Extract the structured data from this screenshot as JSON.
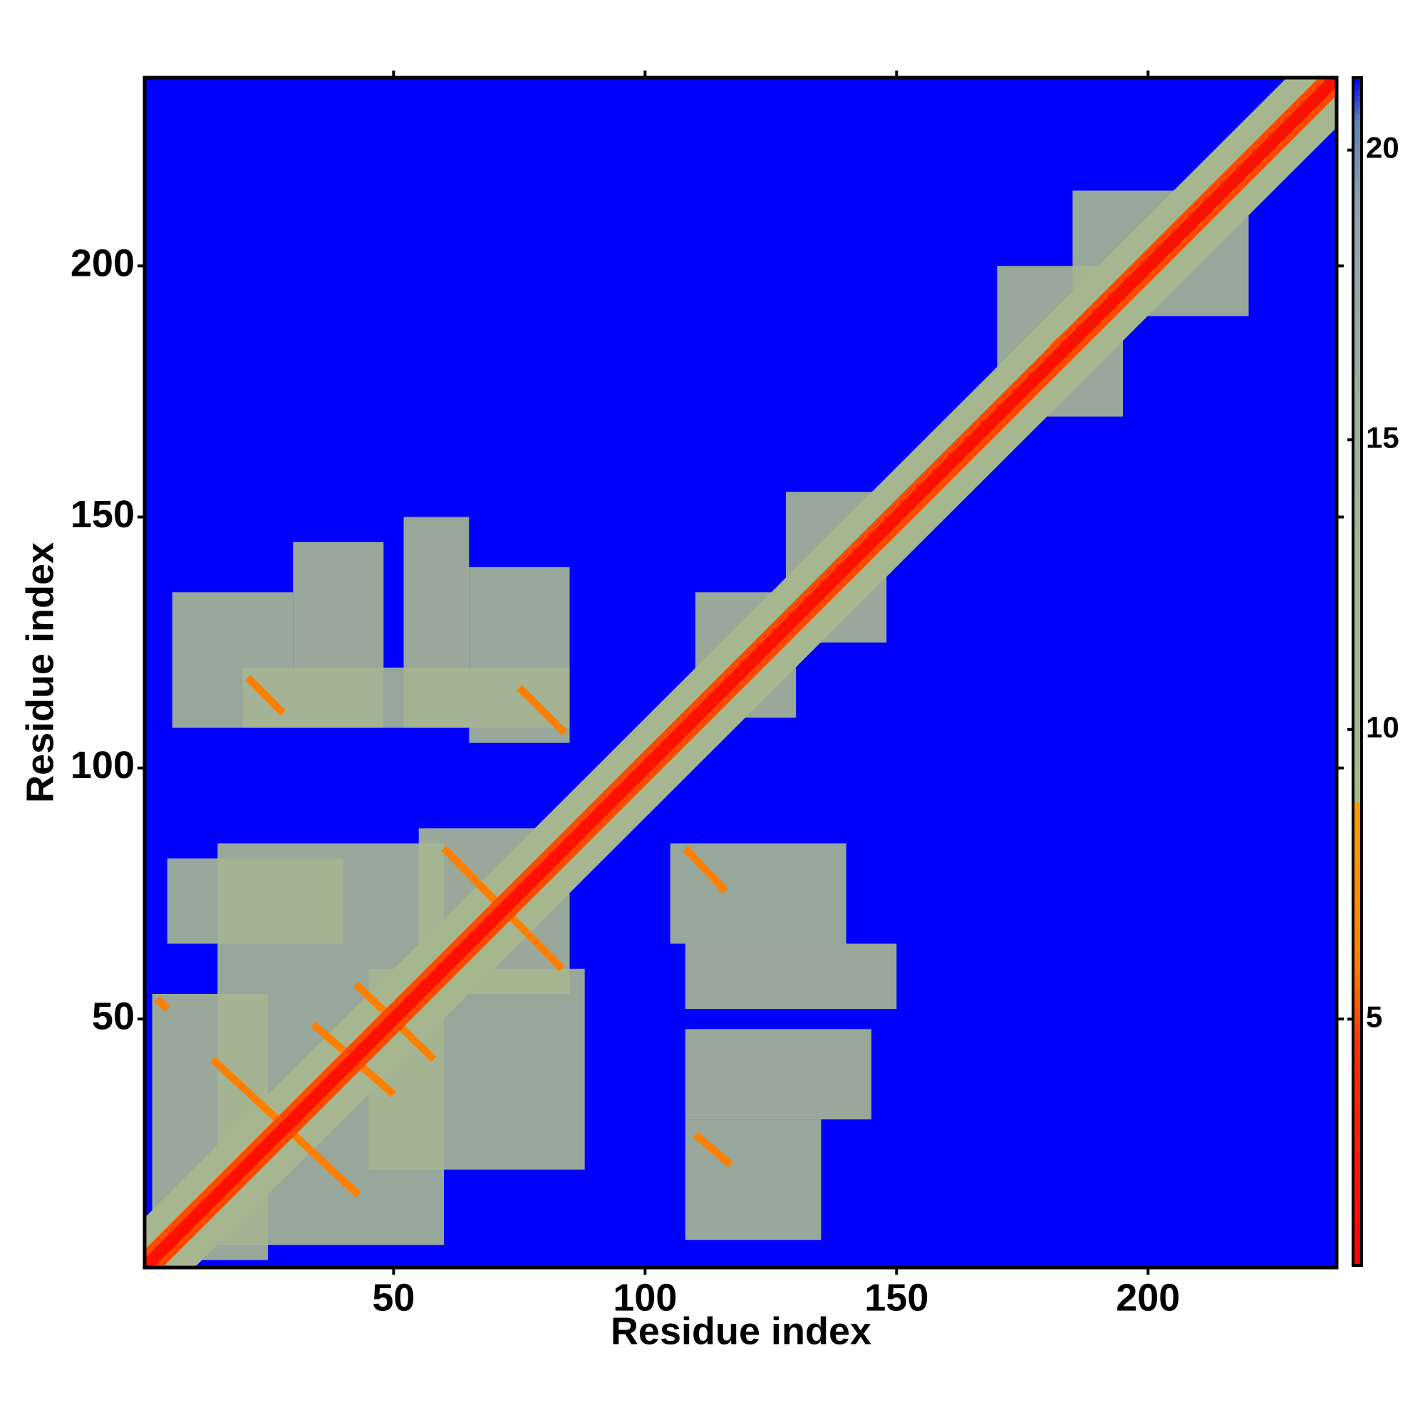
{
  "chart_data": {
    "type": "heatmap",
    "xlabel": "Residue index",
    "ylabel": "Residue index",
    "xlim": [
      0.5,
      237.5
    ],
    "ylim": [
      0.5,
      237.5
    ],
    "xticks": [
      50,
      100,
      150,
      200
    ],
    "yticks": [
      50,
      100,
      150,
      200
    ],
    "colorbar": {
      "lim": [
        0.75,
        21.25
      ],
      "ticks": [
        5,
        10,
        15,
        20
      ],
      "scale": [
        [
          0.75,
          "#ff0000"
        ],
        [
          4.5,
          "#ff3000"
        ],
        [
          6,
          "#ff7f00"
        ],
        [
          8.7,
          "#ff9900"
        ],
        [
          8.8,
          "#a8b98c"
        ],
        [
          14,
          "#a4b494"
        ],
        [
          19,
          "#8ea2ae"
        ],
        [
          20.5,
          "#5f80b8"
        ],
        [
          21.25,
          "#0000ff"
        ]
      ]
    },
    "background_value": 21.25,
    "patches": [
      {
        "x": [
          2,
          25
        ],
        "y": [
          2,
          55
        ],
        "value": 12
      },
      {
        "x": [
          15,
          60
        ],
        "y": [
          5,
          85
        ],
        "value": 13
      },
      {
        "x": [
          45,
          88
        ],
        "y": [
          20,
          60
        ],
        "value": 13
      },
      {
        "x": [
          55,
          85
        ],
        "y": [
          55,
          88
        ],
        "value": 12
      },
      {
        "x": [
          5,
          40
        ],
        "y": [
          65,
          82
        ],
        "value": 13
      },
      {
        "x": [
          6,
          30
        ],
        "y": [
          108,
          135
        ],
        "value": 13
      },
      {
        "x": [
          30,
          48
        ],
        "y": [
          108,
          145
        ],
        "value": 12
      },
      {
        "x": [
          52,
          65
        ],
        "y": [
          108,
          150
        ],
        "value": 12
      },
      {
        "x": [
          65,
          85
        ],
        "y": [
          105,
          140
        ],
        "value": 13
      },
      {
        "x": [
          20,
          85
        ],
        "y": [
          108,
          120
        ],
        "value": 14
      },
      {
        "x": [
          108,
          135
        ],
        "y": [
          6,
          30
        ],
        "value": 13
      },
      {
        "x": [
          108,
          145
        ],
        "y": [
          30,
          48
        ],
        "value": 12
      },
      {
        "x": [
          108,
          150
        ],
        "y": [
          52,
          65
        ],
        "value": 12
      },
      {
        "x": [
          105,
          140
        ],
        "y": [
          65,
          85
        ],
        "value": 13
      },
      {
        "x": [
          110,
          130
        ],
        "y": [
          110,
          135
        ],
        "value": 12
      },
      {
        "x": [
          128,
          148
        ],
        "y": [
          125,
          155
        ],
        "value": 12
      },
      {
        "x": [
          170,
          195
        ],
        "y": [
          170,
          200
        ],
        "value": 12
      },
      {
        "x": [
          185,
          220
        ],
        "y": [
          190,
          215
        ],
        "value": 13
      }
    ],
    "bands": [
      {
        "from": [
          1,
          1
        ],
        "to": [
          237,
          237
        ],
        "width": 14,
        "value": 11
      },
      {
        "from": [
          14,
          42
        ],
        "to": [
          43,
          15
        ],
        "width": 1.5,
        "value": 6
      },
      {
        "from": [
          34,
          49
        ],
        "to": [
          50,
          35
        ],
        "width": 1.5,
        "value": 6
      },
      {
        "from": [
          42.5,
          57
        ],
        "to": [
          58,
          42
        ],
        "width": 1.5,
        "value": 6
      },
      {
        "from": [
          3,
          54
        ],
        "to": [
          5,
          52
        ],
        "width": 1.5,
        "value": 6
      },
      {
        "from": [
          60,
          84
        ],
        "to": [
          83.5,
          60
        ],
        "width": 1.5,
        "value": 6
      },
      {
        "from": [
          21,
          118
        ],
        "to": [
          28,
          111
        ],
        "width": 1.5,
        "value": 6
      },
      {
        "from": [
          75,
          116
        ],
        "to": [
          84,
          107
        ],
        "width": 1.5,
        "value": 6
      },
      {
        "from": [
          108,
          84
        ],
        "to": [
          116,
          75.5
        ],
        "width": 1.5,
        "value": 6
      },
      {
        "from": [
          110,
          27
        ],
        "to": [
          117,
          21
        ],
        "width": 1.5,
        "value": 6
      },
      {
        "from": [
          181,
          183.5
        ],
        "to": [
          195,
          196
        ],
        "width": 2,
        "value": 6
      },
      {
        "from": [
          1,
          1
        ],
        "to": [
          237,
          237
        ],
        "width": 5,
        "value": 5
      },
      {
        "from": [
          1,
          1
        ],
        "to": [
          237,
          237
        ],
        "width": 2.5,
        "value": 2
      }
    ]
  }
}
